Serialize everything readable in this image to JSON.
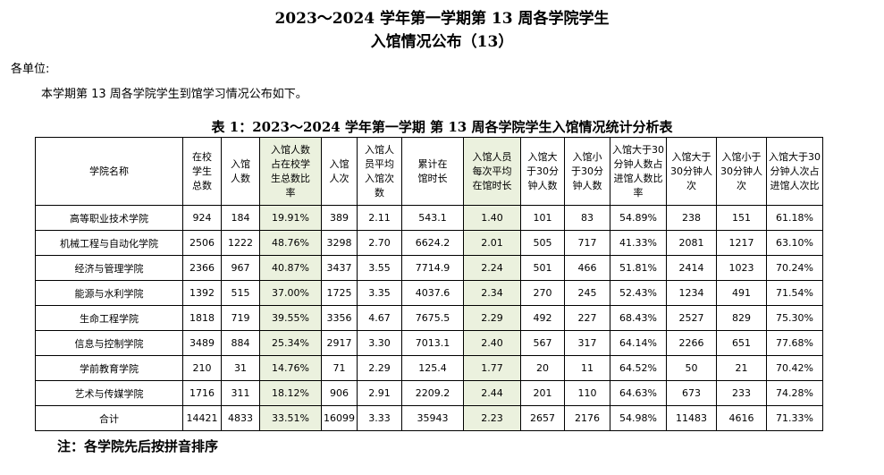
{
  "title_line1": "2023～2024 学年第一学期第 13 周各学院学生",
  "title_line2": "入馆情况公布（13）",
  "salutation": "各单位:",
  "intro": "本学期第 13 周各学院学生到馆学习情况公布如下。",
  "table_caption": "表 1：2023～2024 学年第一学期 第 13 周各学院学生入馆情况统计分析表",
  "headers": [
    "学院名称",
    "在校学生总数",
    "入馆人数",
    "入馆人数占在校学生总数比率",
    "入馆人次",
    "入馆人员平均入馆次数",
    "累计在馆时长",
    "入馆人员每次平均在馆时长",
    "入馆大于30分钟人数",
    "入馆小于30分钟人数",
    "入馆大于30分钟人数占进馆人数比率",
    "入馆大于30分钟人次",
    "入馆小于30分钟人次",
    "入馆大于30分钟人次占进馆人次比"
  ],
  "rows": [
    [
      "高等职业技术学院",
      "924",
      "184",
      "19.91%",
      "389",
      "2.11",
      "543.1",
      "1.40",
      "101",
      "83",
      "54.89%",
      "238",
      "151",
      "61.18%"
    ],
    [
      "机械工程与自动化学院",
      "2506",
      "1222",
      "48.76%",
      "3298",
      "2.70",
      "6624.2",
      "2.01",
      "505",
      "717",
      "41.33%",
      "2081",
      "1217",
      "63.10%"
    ],
    [
      "经济与管理学院",
      "2366",
      "967",
      "40.87%",
      "3437",
      "3.55",
      "7714.9",
      "2.24",
      "501",
      "466",
      "51.81%",
      "2414",
      "1023",
      "70.24%"
    ],
    [
      "能源与水利学院",
      "1392",
      "515",
      "37.00%",
      "1725",
      "3.35",
      "4037.6",
      "2.34",
      "270",
      "245",
      "52.43%",
      "1234",
      "491",
      "71.54%"
    ],
    [
      "生命工程学院",
      "1818",
      "719",
      "39.55%",
      "3356",
      "4.67",
      "7675.5",
      "2.29",
      "492",
      "227",
      "68.43%",
      "2527",
      "829",
      "75.30%"
    ],
    [
      "信息与控制学院",
      "3489",
      "884",
      "25.34%",
      "2917",
      "3.30",
      "7013.1",
      "2.40",
      "567",
      "317",
      "64.14%",
      "2266",
      "651",
      "77.68%"
    ],
    [
      "学前教育学院",
      "210",
      "31",
      "14.76%",
      "71",
      "2.29",
      "125.4",
      "1.77",
      "20",
      "11",
      "64.52%",
      "50",
      "21",
      "70.42%"
    ],
    [
      "艺术与传媒学院",
      "1716",
      "311",
      "18.12%",
      "906",
      "2.91",
      "2209.2",
      "2.44",
      "201",
      "110",
      "64.63%",
      "673",
      "233",
      "74.28%"
    ],
    [
      "合计",
      "14421",
      "4833",
      "33.51%",
      "16099",
      "3.33",
      "35943",
      "2.23",
      "2657",
      "2176",
      "54.98%",
      "11483",
      "4616",
      "71.33%"
    ]
  ],
  "note": "注：各学院先后按拼音排序",
  "highlight_color": "#ebf1de"
}
